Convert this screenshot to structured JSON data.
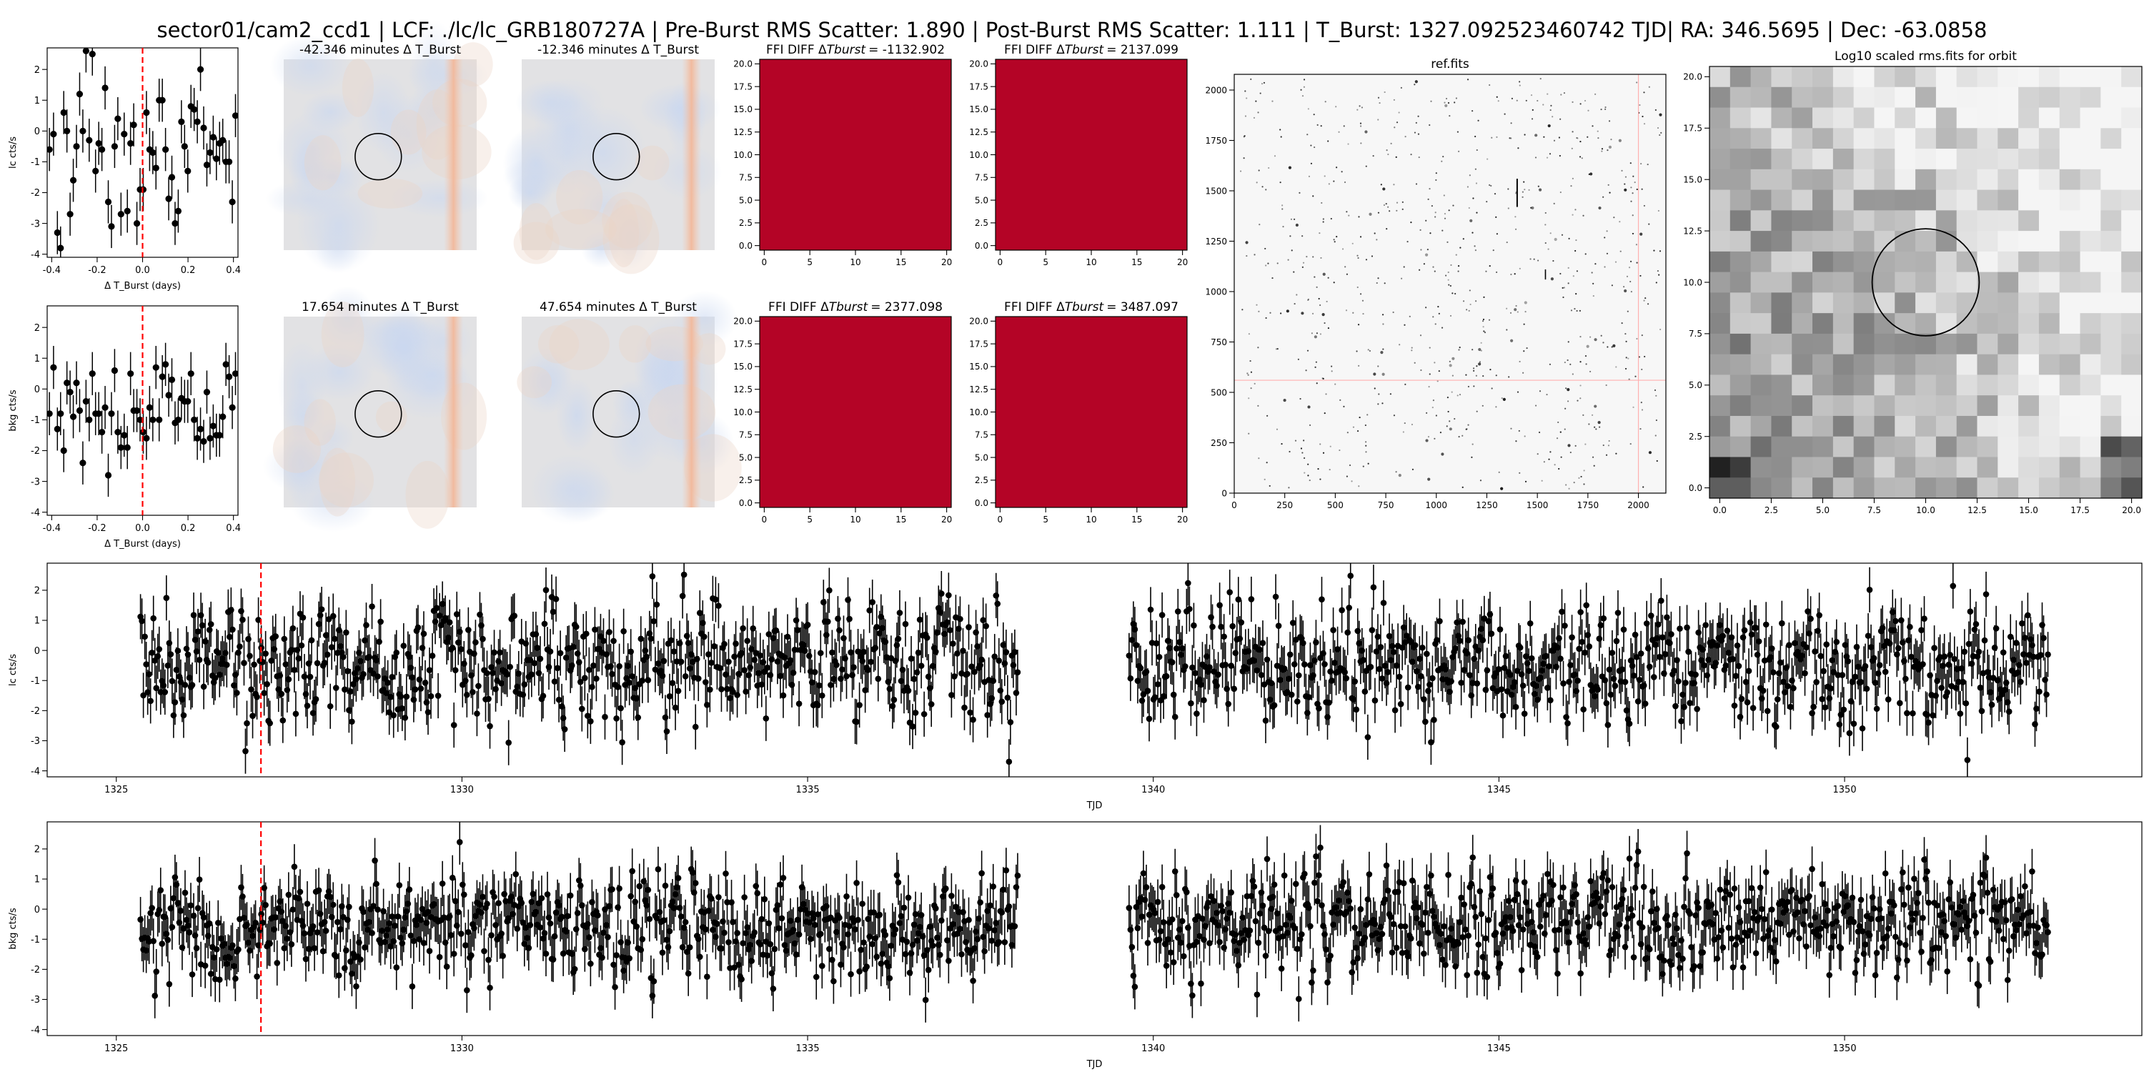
{
  "suptitle": "sector01/cam2_ccd1 | LCF: ./lc/lc_GRB180727A |  Pre-Burst RMS Scatter: 1.890 |  Post-Burst RMS Scatter: 1.111 | T_Burst: 1327.092523460742 TJD| RA: 346.5695 | Dec: -63.0858",
  "colors": {
    "marker": "#000000",
    "burst_line": "#ff0000",
    "ffi_fill": "#b40426",
    "ref_line": "#ffb0b0"
  },
  "chart_data": [
    {
      "id": "lc_zoom",
      "type": "scatter",
      "title": "",
      "xlabel": "Δ T_Burst (days)",
      "ylabel": "lc cts/s",
      "xlim": [
        -0.42,
        0.42
      ],
      "ylim": [
        -4.1,
        2.7
      ],
      "xticks": [
        -0.4,
        -0.2,
        0.0,
        0.2,
        0.4
      ],
      "xticklabels": [
        "-0.4",
        "-0.2",
        "0.0",
        "0.2",
        "0.4"
      ],
      "yticks": [
        -4,
        -3,
        -2,
        -1,
        0,
        1,
        2
      ],
      "yticklabels": [
        "-4",
        "-3",
        "-2",
        "-1",
        "0",
        "1",
        "2"
      ],
      "vline": 0.0,
      "points": [
        {
          "x": -0.41,
          "y": -0.6,
          "e": 0.7
        },
        {
          "x": -0.392,
          "y": -0.1,
          "e": 0.7
        },
        {
          "x": -0.375,
          "y": -3.3,
          "e": 0.7
        },
        {
          "x": -0.361,
          "y": -3.8,
          "e": 0.7
        },
        {
          "x": -0.347,
          "y": 0.6,
          "e": 0.7
        },
        {
          "x": -0.333,
          "y": 0.0,
          "e": 0.7
        },
        {
          "x": -0.319,
          "y": -2.7,
          "e": 0.7
        },
        {
          "x": -0.305,
          "y": -1.6,
          "e": 0.7
        },
        {
          "x": -0.291,
          "y": -0.5,
          "e": 0.7
        },
        {
          "x": -0.277,
          "y": 1.2,
          "e": 0.7
        },
        {
          "x": -0.263,
          "y": 0.0,
          "e": 0.7
        },
        {
          "x": -0.249,
          "y": 2.6,
          "e": 0.7
        },
        {
          "x": -0.235,
          "y": -0.3,
          "e": 0.7
        },
        {
          "x": -0.221,
          "y": 2.5,
          "e": 0.7
        },
        {
          "x": -0.207,
          "y": -1.3,
          "e": 0.7
        },
        {
          "x": -0.193,
          "y": -0.4,
          "e": 0.7
        },
        {
          "x": -0.179,
          "y": -0.6,
          "e": 0.7
        },
        {
          "x": -0.165,
          "y": 1.4,
          "e": 0.7
        },
        {
          "x": -0.151,
          "y": -2.3,
          "e": 0.7
        },
        {
          "x": -0.137,
          "y": -3.1,
          "e": 0.7
        },
        {
          "x": -0.123,
          "y": -0.5,
          "e": 0.7
        },
        {
          "x": -0.109,
          "y": 0.4,
          "e": 0.7
        },
        {
          "x": -0.095,
          "y": -2.7,
          "e": 0.7
        },
        {
          "x": -0.081,
          "y": -0.1,
          "e": 0.7
        },
        {
          "x": -0.067,
          "y": -2.6,
          "e": 0.7
        },
        {
          "x": -0.053,
          "y": -0.4,
          "e": 0.7
        },
        {
          "x": -0.039,
          "y": 0.2,
          "e": 0.7
        },
        {
          "x": -0.025,
          "y": -3.0,
          "e": 0.7
        },
        {
          "x": -0.011,
          "y": -1.9,
          "e": 0.7
        },
        {
          "x": 0.003,
          "y": -1.9,
          "e": 0.7
        },
        {
          "x": 0.017,
          "y": 0.6,
          "e": 0.7
        },
        {
          "x": 0.031,
          "y": -0.6,
          "e": 0.7
        },
        {
          "x": 0.045,
          "y": -0.7,
          "e": 0.7
        },
        {
          "x": 0.059,
          "y": -1.2,
          "e": 0.7
        },
        {
          "x": 0.073,
          "y": 1.0,
          "e": 0.7
        },
        {
          "x": 0.087,
          "y": 1.0,
          "e": 0.7
        },
        {
          "x": 0.101,
          "y": -0.6,
          "e": 0.7
        },
        {
          "x": 0.115,
          "y": -2.2,
          "e": 0.7
        },
        {
          "x": 0.129,
          "y": -1.5,
          "e": 0.7
        },
        {
          "x": 0.143,
          "y": -3.0,
          "e": 0.7
        },
        {
          "x": 0.157,
          "y": -2.6,
          "e": 0.7
        },
        {
          "x": 0.171,
          "y": 0.3,
          "e": 0.7
        },
        {
          "x": 0.185,
          "y": -0.5,
          "e": 0.7
        },
        {
          "x": 0.199,
          "y": -1.3,
          "e": 0.7
        },
        {
          "x": 0.213,
          "y": 0.8,
          "e": 0.7
        },
        {
          "x": 0.227,
          "y": 0.7,
          "e": 0.7
        },
        {
          "x": 0.241,
          "y": 0.3,
          "e": 0.7
        },
        {
          "x": 0.255,
          "y": 2.0,
          "e": 0.7
        },
        {
          "x": 0.269,
          "y": 0.1,
          "e": 0.7
        },
        {
          "x": 0.283,
          "y": -1.1,
          "e": 0.7
        },
        {
          "x": 0.297,
          "y": -0.7,
          "e": 0.7
        },
        {
          "x": 0.311,
          "y": -0.2,
          "e": 0.7
        },
        {
          "x": 0.325,
          "y": -0.9,
          "e": 0.7
        },
        {
          "x": 0.339,
          "y": -0.4,
          "e": 0.7
        },
        {
          "x": 0.353,
          "y": -0.3,
          "e": 0.7
        },
        {
          "x": 0.367,
          "y": -1.0,
          "e": 0.7
        },
        {
          "x": 0.381,
          "y": -1.0,
          "e": 0.7
        },
        {
          "x": 0.395,
          "y": -2.3,
          "e": 0.7
        },
        {
          "x": 0.409,
          "y": 0.5,
          "e": 0.7
        }
      ]
    },
    {
      "id": "bkg_zoom",
      "type": "scatter",
      "title": "",
      "xlabel": "Δ T_Burst (days)",
      "ylabel": "bkg cts/s",
      "xlim": [
        -0.42,
        0.42
      ],
      "ylim": [
        -4.1,
        2.7
      ],
      "xticks": [
        -0.4,
        -0.2,
        0.0,
        0.2,
        0.4
      ],
      "xticklabels": [
        "-0.4",
        "-0.2",
        "0.0",
        "0.2",
        "0.4"
      ],
      "yticks": [
        -4,
        -3,
        -2,
        -1,
        0,
        1,
        2
      ],
      "yticklabels": [
        "-4",
        "-3",
        "-2",
        "-1",
        "0",
        "1",
        "2"
      ],
      "vline": 0.0,
      "points": [
        {
          "x": -0.41,
          "y": -0.8,
          "e": 0.7
        },
        {
          "x": -0.392,
          "y": 0.7,
          "e": 0.7
        },
        {
          "x": -0.375,
          "y": -1.3,
          "e": 0.7
        },
        {
          "x": -0.361,
          "y": -0.8,
          "e": 0.7
        },
        {
          "x": -0.347,
          "y": -2.0,
          "e": 0.7
        },
        {
          "x": -0.333,
          "y": 0.2,
          "e": 0.7
        },
        {
          "x": -0.319,
          "y": -0.1,
          "e": 0.7
        },
        {
          "x": -0.305,
          "y": -0.9,
          "e": 0.7
        },
        {
          "x": -0.291,
          "y": 0.2,
          "e": 0.7
        },
        {
          "x": -0.277,
          "y": -0.7,
          "e": 0.7
        },
        {
          "x": -0.263,
          "y": -2.4,
          "e": 0.7
        },
        {
          "x": -0.249,
          "y": -0.4,
          "e": 0.7
        },
        {
          "x": -0.235,
          "y": -1.0,
          "e": 0.7
        },
        {
          "x": -0.221,
          "y": 0.5,
          "e": 0.7
        },
        {
          "x": -0.207,
          "y": -0.8,
          "e": 0.7
        },
        {
          "x": -0.193,
          "y": -0.8,
          "e": 0.7
        },
        {
          "x": -0.179,
          "y": -1.4,
          "e": 0.7
        },
        {
          "x": -0.165,
          "y": -0.6,
          "e": 0.7
        },
        {
          "x": -0.151,
          "y": -2.8,
          "e": 0.7
        },
        {
          "x": -0.137,
          "y": -0.8,
          "e": 0.7
        },
        {
          "x": -0.123,
          "y": 0.6,
          "e": 0.7
        },
        {
          "x": -0.109,
          "y": -1.4,
          "e": 0.7
        },
        {
          "x": -0.095,
          "y": -1.9,
          "e": 0.7
        },
        {
          "x": -0.081,
          "y": -1.5,
          "e": 0.7
        },
        {
          "x": -0.067,
          "y": -1.9,
          "e": 0.7
        },
        {
          "x": -0.053,
          "y": 0.5,
          "e": 0.7
        },
        {
          "x": -0.039,
          "y": -0.7,
          "e": 0.7
        },
        {
          "x": -0.025,
          "y": -0.7,
          "e": 0.7
        },
        {
          "x": -0.011,
          "y": -1.0,
          "e": 0.7
        },
        {
          "x": 0.003,
          "y": -1.4,
          "e": 0.7
        },
        {
          "x": 0.017,
          "y": -1.6,
          "e": 0.7
        },
        {
          "x": 0.031,
          "y": -0.6,
          "e": 0.7
        },
        {
          "x": 0.045,
          "y": -1.0,
          "e": 0.7
        },
        {
          "x": 0.059,
          "y": 0.7,
          "e": 0.7
        },
        {
          "x": 0.073,
          "y": -1.0,
          "e": 0.7
        },
        {
          "x": 0.087,
          "y": 0.4,
          "e": 0.7
        },
        {
          "x": 0.101,
          "y": 0.8,
          "e": 0.7
        },
        {
          "x": 0.115,
          "y": -0.2,
          "e": 0.7
        },
        {
          "x": 0.129,
          "y": 0.3,
          "e": 0.7
        },
        {
          "x": 0.143,
          "y": -1.1,
          "e": 0.7
        },
        {
          "x": 0.157,
          "y": -1.0,
          "e": 0.7
        },
        {
          "x": 0.171,
          "y": -0.3,
          "e": 0.7
        },
        {
          "x": 0.185,
          "y": -0.4,
          "e": 0.7
        },
        {
          "x": 0.199,
          "y": -0.4,
          "e": 0.7
        },
        {
          "x": 0.213,
          "y": 0.5,
          "e": 0.7
        },
        {
          "x": 0.227,
          "y": -1.0,
          "e": 0.7
        },
        {
          "x": 0.241,
          "y": -1.6,
          "e": 0.7
        },
        {
          "x": 0.255,
          "y": -1.3,
          "e": 0.7
        },
        {
          "x": 0.269,
          "y": -1.7,
          "e": 0.7
        },
        {
          "x": 0.283,
          "y": -0.1,
          "e": 0.7
        },
        {
          "x": 0.297,
          "y": -1.6,
          "e": 0.7
        },
        {
          "x": 0.311,
          "y": -1.2,
          "e": 0.7
        },
        {
          "x": 0.325,
          "y": -1.5,
          "e": 0.7
        },
        {
          "x": 0.339,
          "y": -1.5,
          "e": 0.7
        },
        {
          "x": 0.353,
          "y": -0.9,
          "e": 0.7
        },
        {
          "x": 0.367,
          "y": 0.8,
          "e": 0.7
        },
        {
          "x": 0.381,
          "y": 0.4,
          "e": 0.7
        },
        {
          "x": 0.395,
          "y": -0.6,
          "e": 0.7
        },
        {
          "x": 0.409,
          "y": 0.5,
          "e": 0.7
        }
      ]
    },
    {
      "id": "diff_cut_1",
      "type": "heatmap",
      "title": "-42.346 minutes Δ T_Burst",
      "colormap": "coolwarm",
      "axes": "off",
      "aperture": "circle",
      "streak_column": "near right edge"
    },
    {
      "id": "diff_cut_2",
      "type": "heatmap",
      "title": "-12.346 minutes Δ T_Burst",
      "colormap": "coolwarm",
      "axes": "off",
      "aperture": "circle",
      "streak_column": "near right edge"
    },
    {
      "id": "diff_cut_3",
      "type": "heatmap",
      "title": "17.654 minutes Δ T_Burst",
      "colormap": "coolwarm",
      "axes": "off",
      "aperture": "circle",
      "streak_column": "near right edge"
    },
    {
      "id": "diff_cut_4",
      "type": "heatmap",
      "title": "47.654 minutes Δ T_Burst",
      "colormap": "coolwarm",
      "axes": "off",
      "aperture": "circle",
      "streak_column": "near right edge"
    },
    {
      "id": "ffi_diff_1",
      "type": "heatmap",
      "title_prefix": "FFI DIFF Δ",
      "title_var": "Tburst",
      "title_value": "= -1132.902",
      "fill": "solid red",
      "xlim": [
        -0.5,
        20.5
      ],
      "ylim": [
        -0.5,
        20.5
      ],
      "xticks": [
        0,
        5,
        10,
        15,
        20
      ],
      "xticklabels": [
        "0",
        "5",
        "10",
        "15",
        "20"
      ],
      "yticks": [
        0,
        2.5,
        5,
        7.5,
        10,
        12.5,
        15,
        17.5,
        20
      ],
      "yticklabels": [
        "0.0",
        "2.5",
        "5.0",
        "7.5",
        "10.0",
        "12.5",
        "15.0",
        "17.5",
        "20.0"
      ]
    },
    {
      "id": "ffi_diff_2",
      "type": "heatmap",
      "title_prefix": "FFI DIFF Δ",
      "title_var": "Tburst",
      "title_value": "= 2137.099",
      "fill": "solid red",
      "xlim": [
        -0.5,
        20.5
      ],
      "ylim": [
        -0.5,
        20.5
      ],
      "xticks": [
        0,
        5,
        10,
        15,
        20
      ],
      "xticklabels": [
        "0",
        "5",
        "10",
        "15",
        "20"
      ],
      "yticks": [
        0,
        2.5,
        5,
        7.5,
        10,
        12.5,
        15,
        17.5,
        20
      ],
      "yticklabels": [
        "0.0",
        "2.5",
        "5.0",
        "7.5",
        "10.0",
        "12.5",
        "15.0",
        "17.5",
        "20.0"
      ]
    },
    {
      "id": "ffi_diff_3",
      "type": "heatmap",
      "title_prefix": "FFI DIFF Δ",
      "title_var": "Tburst",
      "title_value": "= 2377.098",
      "fill": "solid red",
      "xlim": [
        -0.5,
        20.5
      ],
      "ylim": [
        -0.5,
        20.5
      ],
      "xticks": [
        0,
        5,
        10,
        15,
        20
      ],
      "xticklabels": [
        "0",
        "5",
        "10",
        "15",
        "20"
      ],
      "yticks": [
        0,
        2.5,
        5,
        7.5,
        10,
        12.5,
        15,
        17.5,
        20
      ],
      "yticklabels": [
        "0.0",
        "2.5",
        "5.0",
        "7.5",
        "10.0",
        "12.5",
        "15.0",
        "17.5",
        "20.0"
      ]
    },
    {
      "id": "ffi_diff_4",
      "type": "heatmap",
      "title_prefix": "FFI DIFF Δ",
      "title_var": "Tburst",
      "title_value": "= 3487.097",
      "fill": "solid red",
      "xlim": [
        -0.5,
        20.5
      ],
      "ylim": [
        -0.5,
        20.5
      ],
      "xticks": [
        0,
        5,
        10,
        15,
        20
      ],
      "xticklabels": [
        "0",
        "5",
        "10",
        "15",
        "20"
      ],
      "yticks": [
        0,
        2.5,
        5,
        7.5,
        10,
        12.5,
        15,
        17.5,
        20
      ],
      "yticklabels": [
        "0.0",
        "2.5",
        "5.0",
        "7.5",
        "10.0",
        "12.5",
        "15.0",
        "17.5",
        "20.0"
      ]
    },
    {
      "id": "ref_fits",
      "type": "heatmap",
      "title": "ref.fits",
      "colormap": "gray_r",
      "xlim": [
        0,
        2136
      ],
      "ylim": [
        0,
        2078
      ],
      "xticks": [
        0,
        250,
        500,
        750,
        1000,
        1250,
        1500,
        1750,
        2000
      ],
      "xticklabels": [
        "0",
        "250",
        "500",
        "750",
        "1000",
        "1250",
        "1500",
        "1750",
        "2000"
      ],
      "yticks": [
        0,
        250,
        500,
        750,
        1000,
        1250,
        1500,
        1750,
        2000
      ],
      "yticklabels": [
        "0",
        "250",
        "500",
        "750",
        "1000",
        "1250",
        "1500",
        "1750",
        "2000"
      ],
      "crosshair": {
        "x": 2000,
        "y": 560
      }
    },
    {
      "id": "rms_fits",
      "type": "heatmap",
      "title": "Log10 scaled rms.fits for orbit",
      "colormap": "gray",
      "xlim": [
        -0.5,
        20.5
      ],
      "ylim": [
        -0.5,
        20.5
      ],
      "xticks": [
        0,
        2.5,
        5,
        7.5,
        10,
        12.5,
        15,
        17.5,
        20
      ],
      "xticklabels": [
        "0.0",
        "2.5",
        "5.0",
        "7.5",
        "10.0",
        "12.5",
        "15.0",
        "17.5",
        "20.0"
      ],
      "yticks": [
        0,
        2.5,
        5,
        7.5,
        10,
        12.5,
        15,
        17.5,
        20
      ],
      "yticklabels": [
        "0.0",
        "2.5",
        "5.0",
        "7.5",
        "10.0",
        "12.5",
        "15.0",
        "17.5",
        "20.0"
      ],
      "aperture": {
        "cx": 10,
        "cy": 10,
        "r": 2.6
      }
    },
    {
      "id": "lc_full",
      "type": "scatter",
      "title": "",
      "xlabel": "TJD",
      "ylabel": "lc cts/s",
      "xlim": [
        1324.0,
        1354.3
      ],
      "ylim": [
        -4.2,
        2.9
      ],
      "xticks": [
        1325,
        1330,
        1335,
        1340,
        1345,
        1350
      ],
      "xticklabels": [
        "1325",
        "1330",
        "1335",
        "1340",
        "1345",
        "1350"
      ],
      "yticks": [
        -4,
        -3,
        -2,
        -1,
        0,
        1,
        2
      ],
      "yticklabels": [
        "-4",
        "-3",
        "-2",
        "-1",
        "0",
        "1",
        "2"
      ],
      "vline": 1327.0925,
      "segments": [
        [
          1325.35,
          1338.05
        ],
        [
          1339.65,
          1352.95
        ]
      ],
      "mean": -0.5,
      "sigma": 1.15,
      "error": 0.75,
      "cadence": 0.0208
    },
    {
      "id": "bkg_full",
      "type": "scatter",
      "title": "",
      "xlabel": "TJD",
      "ylabel": "bkg cts/s",
      "xlim": [
        1324.0,
        1354.3
      ],
      "ylim": [
        -4.2,
        2.9
      ],
      "xticks": [
        1325,
        1330,
        1335,
        1340,
        1345,
        1350
      ],
      "xticklabels": [
        "1325",
        "1330",
        "1335",
        "1340",
        "1345",
        "1350"
      ],
      "yticks": [
        -4,
        -3,
        -2,
        -1,
        0,
        1,
        2
      ],
      "yticklabels": [
        "-4",
        "-3",
        "-2",
        "-1",
        "0",
        "1",
        "2"
      ],
      "vline": 1327.0925,
      "segments": [
        [
          1325.35,
          1338.05
        ],
        [
          1339.65,
          1352.95
        ]
      ],
      "mean": -0.5,
      "sigma": 0.95,
      "error": 0.75,
      "cadence": 0.0208
    }
  ]
}
